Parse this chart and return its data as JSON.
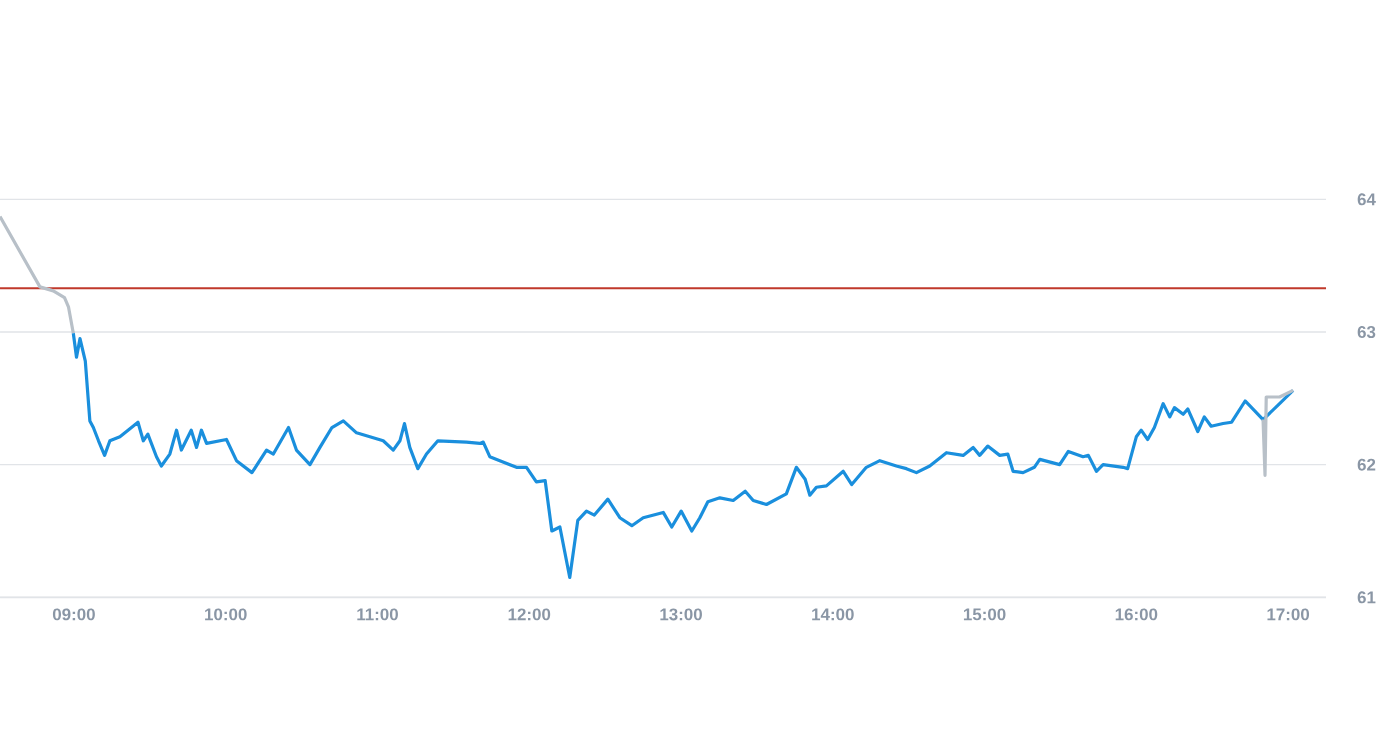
{
  "chart_data": {
    "type": "line",
    "xlim": [
      8.513,
      17.25
    ],
    "ylim": [
      61,
      64
    ],
    "xticks": [
      {
        "value": 9,
        "label": "09:00"
      },
      {
        "value": 10,
        "label": "10:00"
      },
      {
        "value": 11,
        "label": "11:00"
      },
      {
        "value": 12,
        "label": "12:00"
      },
      {
        "value": 13,
        "label": "13:00"
      },
      {
        "value": 14,
        "label": "14:00"
      },
      {
        "value": 15,
        "label": "15:00"
      },
      {
        "value": 16,
        "label": "16:00"
      },
      {
        "value": 17,
        "label": "17:00"
      }
    ],
    "yticks": [
      61,
      62,
      63,
      64
    ],
    "grid": "y",
    "marker": "none",
    "line_style": "solid",
    "ref_lines": [
      {
        "axis": "y",
        "value": 63.33,
        "color": "#c0392b"
      }
    ],
    "series": [
      {
        "color": "#b8c0c8",
        "x": [
          8.513,
          8.776,
          8.864,
          8.938,
          8.964,
          8.996
        ],
        "values": [
          63.87,
          63.34,
          63.31,
          63.26,
          63.19,
          62.99
        ]
      },
      {
        "color": "#1a8fdd",
        "x": [
          8.996,
          9.017,
          9.04,
          9.075,
          9.105,
          9.128,
          9.162,
          9.202,
          9.237,
          9.303,
          9.369,
          9.422,
          9.457,
          9.487,
          9.544,
          9.576,
          9.632,
          9.676,
          9.708,
          9.773,
          9.808,
          9.84,
          9.874,
          10.005,
          10.071,
          10.173,
          10.269,
          10.314,
          10.414,
          10.466,
          10.555,
          10.621,
          10.7,
          10.775,
          10.862,
          10.95,
          11.038,
          11.104,
          11.148,
          11.178,
          11.213,
          11.266,
          11.323,
          11.398,
          11.586,
          11.675,
          11.697,
          11.74,
          11.806,
          11.916,
          11.982,
          12.047,
          12.105,
          12.149,
          12.202,
          12.267,
          12.32,
          12.377,
          12.429,
          12.518,
          12.597,
          12.676,
          12.751,
          12.883,
          12.939,
          13.001,
          13.071,
          13.124,
          13.177,
          13.256,
          13.344,
          13.423,
          13.476,
          13.563,
          13.694,
          13.76,
          13.818,
          13.849,
          13.892,
          13.958,
          14.069,
          14.125,
          14.221,
          14.31,
          14.419,
          14.485,
          14.551,
          14.639,
          14.749,
          14.859,
          14.925,
          14.968,
          15.021,
          15.1,
          15.153,
          15.188,
          15.254,
          15.328,
          15.364,
          15.495,
          15.552,
          15.649,
          15.684,
          15.737,
          15.781,
          15.913,
          15.943,
          16.0,
          16.032,
          16.075,
          16.119,
          16.177,
          16.22,
          16.251,
          16.309,
          16.339,
          16.405,
          16.448,
          16.493,
          16.572,
          16.628,
          16.717,
          16.777,
          16.835,
          16.944,
          17.033
        ],
        "values": [
          62.99,
          62.81,
          62.95,
          62.78,
          62.33,
          62.28,
          62.18,
          62.07,
          62.18,
          62.21,
          62.27,
          62.32,
          62.18,
          62.23,
          62.06,
          61.99,
          62.08,
          62.26,
          62.11,
          62.26,
          62.13,
          62.26,
          62.16,
          62.19,
          62.03,
          61.94,
          62.11,
          62.08,
          62.28,
          62.11,
          62.0,
          62.13,
          62.28,
          62.33,
          62.24,
          62.21,
          62.18,
          62.11,
          62.18,
          62.31,
          62.13,
          61.97,
          62.08,
          62.18,
          62.17,
          62.16,
          62.17,
          62.06,
          62.03,
          61.98,
          61.98,
          61.87,
          61.88,
          61.5,
          61.53,
          61.15,
          61.58,
          61.65,
          61.62,
          61.74,
          61.6,
          61.54,
          61.6,
          61.64,
          61.53,
          61.65,
          61.5,
          61.6,
          61.72,
          61.75,
          61.73,
          61.8,
          61.73,
          61.7,
          61.78,
          61.98,
          61.89,
          61.77,
          61.83,
          61.84,
          61.95,
          61.85,
          61.98,
          62.03,
          61.99,
          61.97,
          61.94,
          61.99,
          62.09,
          62.07,
          62.13,
          62.07,
          62.14,
          62.07,
          62.08,
          61.95,
          61.94,
          61.98,
          62.04,
          62.0,
          62.1,
          62.06,
          62.07,
          61.95,
          62.0,
          61.98,
          61.97,
          62.21,
          62.26,
          62.19,
          62.28,
          62.46,
          62.36,
          62.43,
          62.38,
          62.42,
          62.25,
          62.36,
          62.29,
          62.31,
          62.32,
          62.48,
          62.41,
          62.34,
          62.46,
          62.56
        ]
      },
      {
        "color": "#b8c0c8",
        "x": [
          16.835,
          16.848,
          16.856,
          16.944,
          17.033
        ],
        "values": [
          62.34,
          61.92,
          62.51,
          62.51,
          62.56
        ]
      }
    ]
  }
}
